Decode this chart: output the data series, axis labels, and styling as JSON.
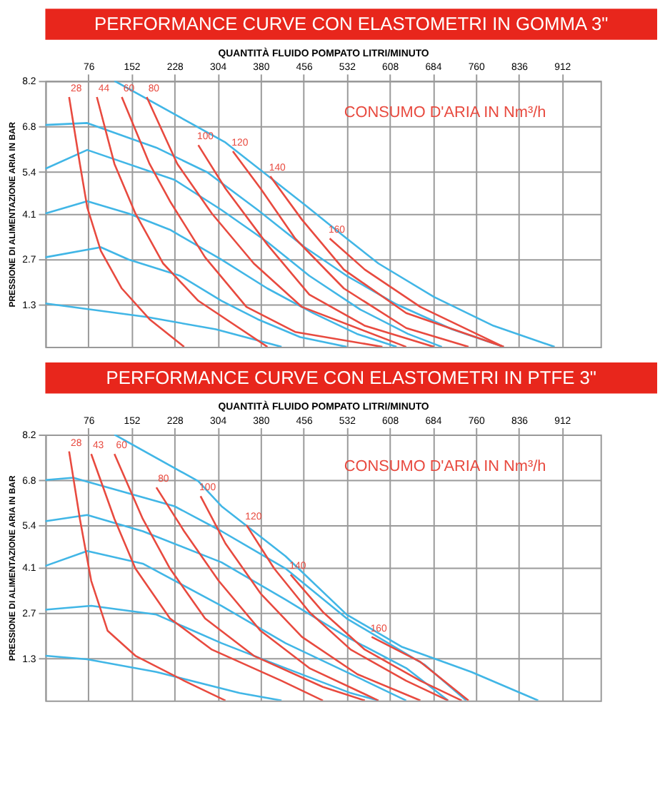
{
  "chart_data": [
    {
      "type": "line",
      "title": "PERFORMANCE CURVE CON ELASTOMETRI IN GOMMA 3\"",
      "xlabel": "QUANTITÀ FLUIDO POMPATO LITRI/MINUTO",
      "ylabel": "PRESSIONE DI ALIMENTAZIONE ARIA IN BAR",
      "annotations": [
        "CONSUMO D'ARIA IN Nm³/h"
      ],
      "xlim": [
        0,
        980
      ],
      "ylim": [
        0,
        8.2
      ],
      "xticks": [
        76,
        152,
        228,
        304,
        380,
        456,
        532,
        608,
        684,
        760,
        836,
        912
      ],
      "yticks": [
        1.3,
        2.7,
        4.1,
        5.4,
        6.8,
        8.2
      ],
      "grid": true,
      "legend": false,
      "series": [
        {
          "color": "#41b6e6",
          "x": [
            122,
            318,
            385,
            458,
            532,
            588,
            686,
            791,
            899
          ],
          "values": [
            8.2,
            6.3,
            5.38,
            4.38,
            3.34,
            2.57,
            1.54,
            0.65,
            0
          ]
        },
        {
          "color": "#41b6e6",
          "x": [
            0,
            74,
            196,
            286,
            375,
            458,
            532,
            620,
            718,
            809
          ],
          "values": [
            6.84,
            6.9,
            6.14,
            5.38,
            4.22,
            3.07,
            2.19,
            1.31,
            0.54,
            0
          ]
        },
        {
          "color": "#41b6e6",
          "x": [
            0,
            74,
            228,
            311,
            392,
            466,
            556,
            640,
            700
          ],
          "values": [
            5.49,
            6.07,
            5.15,
            4.22,
            3.23,
            2.19,
            1.15,
            0.4,
            0
          ]
        },
        {
          "color": "#41b6e6",
          "x": [
            0,
            74,
            147,
            220,
            311,
            392,
            473,
            550,
            620
          ],
          "values": [
            4.11,
            4.49,
            4.11,
            3.61,
            2.69,
            1.8,
            1.04,
            0.4,
            0
          ]
        },
        {
          "color": "#41b6e6",
          "x": [
            0,
            98,
            147,
            238,
            311,
            375,
            450,
            532
          ],
          "values": [
            2.76,
            3.07,
            2.69,
            2.19,
            1.42,
            0.85,
            0.3,
            0
          ]
        },
        {
          "color": "#41b6e6",
          "x": [
            0,
            179,
            301,
            417
          ],
          "values": [
            1.34,
            0.92,
            0.54,
            0
          ]
        },
        {
          "name": "28",
          "color": "#e84a3f",
          "x": [
            42,
            61,
            74,
            98,
            135,
            184,
            245
          ],
          "values": [
            7.7,
            5.64,
            4.3,
            2.96,
            1.8,
            0.85,
            0
          ]
        },
        {
          "name": "44",
          "color": "#e84a3f",
          "x": [
            91,
            122,
            159,
            208,
            270,
            392
          ],
          "values": [
            7.7,
            5.64,
            4.11,
            2.57,
            1.42,
            0
          ]
        },
        {
          "name": "60",
          "color": "#e84a3f",
          "x": [
            135,
            184,
            220,
            282,
            355,
            441,
            595
          ],
          "values": [
            7.7,
            5.64,
            4.49,
            2.76,
            1.23,
            0.46,
            0
          ]
        },
        {
          "name": "80",
          "color": "#e84a3f",
          "x": [
            179,
            233,
            294,
            368,
            453,
            637
          ],
          "values": [
            7.7,
            5.64,
            4.11,
            2.57,
            1.23,
            0
          ]
        },
        {
          "name": "100",
          "color": "#e84a3f",
          "x": [
            270,
            318,
            392,
            466,
            564,
            686
          ],
          "values": [
            6.22,
            4.88,
            3.15,
            1.61,
            0.65,
            0
          ]
        },
        {
          "name": "120",
          "color": "#e84a3f",
          "x": [
            331,
            380,
            441,
            527,
            637,
            747
          ],
          "values": [
            6.03,
            4.88,
            3.34,
            1.8,
            0.58,
            0
          ]
        },
        {
          "name": "140",
          "color": "#e84a3f",
          "x": [
            397,
            453,
            527,
            637,
            809
          ],
          "values": [
            5.26,
            3.92,
            2.38,
            1.04,
            0
          ]
        },
        {
          "name": "160",
          "color": "#e84a3f",
          "x": [
            502,
            564,
            662,
            809
          ],
          "values": [
            3.34,
            2.38,
            1.23,
            0
          ]
        }
      ]
    },
    {
      "type": "line",
      "title": "PERFORMANCE CURVE CON ELASTOMETRI IN PTFE 3\"",
      "xlabel": "QUANTITÀ FLUIDO POMPATO LITRI/MINUTO",
      "ylabel": "PRESSIONE DI ALIMENTAZIONE ARIA IN BAR",
      "annotations": [
        "CONSUMO D'ARIA IN Nm³/h"
      ],
      "xlim": [
        0,
        980
      ],
      "ylim": [
        0,
        8.2
      ],
      "xticks": [
        76,
        152,
        228,
        304,
        380,
        456,
        532,
        608,
        684,
        760,
        836,
        912
      ],
      "yticks": [
        1.3,
        2.7,
        4.1,
        5.4,
        6.8,
        8.2
      ],
      "grid": true,
      "legend": false,
      "series": [
        {
          "color": "#41b6e6",
          "x": [
            122,
            270,
            311,
            424,
            532,
            630,
            752,
            870
          ],
          "values": [
            8.2,
            6.76,
            5.99,
            4.45,
            2.65,
            1.65,
            0.88,
            0
          ]
        },
        {
          "color": "#41b6e6",
          "x": [
            0,
            49,
            228,
            311,
            424,
            532,
            669,
            743
          ],
          "values": [
            6.8,
            6.87,
            5.99,
            5.22,
            4.07,
            2.53,
            1.11,
            0
          ]
        },
        {
          "color": "#41b6e6",
          "x": [
            0,
            74,
            172,
            311,
            424,
            532,
            637,
            711
          ],
          "values": [
            5.53,
            5.72,
            5.22,
            4.26,
            3.11,
            1.96,
            1.0,
            0
          ]
        },
        {
          "color": "#41b6e6",
          "x": [
            0,
            74,
            172,
            311,
            424,
            564,
            637
          ],
          "values": [
            4.15,
            4.61,
            4.22,
            2.92,
            1.77,
            0.61,
            0
          ]
        },
        {
          "color": "#41b6e6",
          "x": [
            0,
            81,
            196,
            311,
            424,
            539,
            588
          ],
          "values": [
            2.8,
            2.92,
            2.65,
            1.77,
            1.0,
            0.23,
            0
          ]
        },
        {
          "color": "#41b6e6",
          "x": [
            0,
            74,
            196,
            343,
            417
          ],
          "values": [
            1.38,
            1.27,
            0.88,
            0.23,
            0
          ]
        },
        {
          "name": "28",
          "color": "#e84a3f",
          "x": [
            42,
            61,
            81,
            110,
            159,
            245,
            318
          ],
          "values": [
            7.68,
            5.6,
            3.69,
            2.15,
            1.38,
            0.61,
            0
          ]
        },
        {
          "name": "43",
          "color": "#e84a3f",
          "x": [
            81,
            122,
            159,
            220,
            294,
            417,
            490
          ],
          "values": [
            7.6,
            5.6,
            4.07,
            2.53,
            1.57,
            0.61,
            0
          ]
        },
        {
          "name": "60",
          "color": "#e84a3f",
          "x": [
            122,
            172,
            220,
            282,
            368,
            490,
            564
          ],
          "values": [
            7.6,
            5.6,
            4.07,
            2.53,
            1.38,
            0.42,
            0
          ]
        },
        {
          "name": "80",
          "color": "#e84a3f",
          "x": [
            196,
            245,
            306,
            380,
            466,
            588
          ],
          "values": [
            6.57,
            5.22,
            3.69,
            2.15,
            1.0,
            0
          ]
        },
        {
          "name": "100",
          "color": "#e84a3f",
          "x": [
            274,
            318,
            380,
            453,
            551,
            662
          ],
          "values": [
            6.3,
            4.84,
            3.3,
            1.96,
            0.81,
            0
          ]
        },
        {
          "name": "120",
          "color": "#e84a3f",
          "x": [
            355,
            404,
            466,
            539,
            637,
            711
          ],
          "values": [
            5.41,
            4.07,
            2.73,
            1.57,
            0.61,
            0
          ]
        },
        {
          "name": "140",
          "color": "#e84a3f",
          "x": [
            433,
            490,
            564,
            662,
            735
          ],
          "values": [
            3.88,
            2.73,
            1.57,
            0.61,
            0
          ]
        },
        {
          "name": "160",
          "color": "#e84a3f",
          "x": [
            576,
            662,
            747
          ],
          "values": [
            1.96,
            1.19,
            0
          ]
        }
      ]
    }
  ]
}
